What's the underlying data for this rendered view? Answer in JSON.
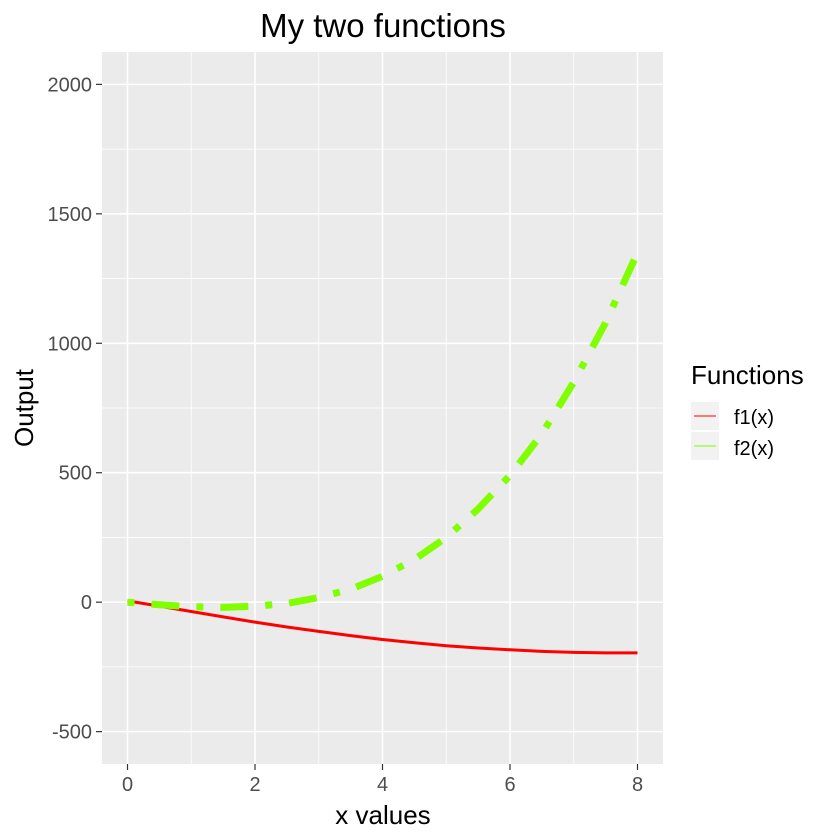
{
  "chart_data": {
    "type": "line",
    "title": "My two functions",
    "xlabel": "x values",
    "ylabel": "Output",
    "xlim": [
      -0.4,
      8.4
    ],
    "ylim": [
      -625,
      2125
    ],
    "x_ticks": [
      0,
      2,
      4,
      6,
      8
    ],
    "y_ticks": [
      -500,
      0,
      500,
      1000,
      1500,
      2000
    ],
    "grid": true,
    "panel_background": "#ebebeb",
    "legend": {
      "title": "Functions",
      "placement": "right"
    },
    "series": [
      {
        "name": "f1(x)",
        "color": "#ff0000",
        "line_style": "solid",
        "x": [
          0,
          0.5,
          1,
          1.5,
          2,
          2.5,
          3,
          3.5,
          4,
          4.5,
          5,
          5.5,
          6,
          6.5,
          7,
          7.5,
          8
        ],
        "y": [
          5,
          -15,
          -36,
          -57,
          -77,
          -96,
          -113,
          -129,
          -144,
          -157,
          -168,
          -177,
          -184,
          -190,
          -194,
          -196,
          -196
        ]
      },
      {
        "name": "f2(x)",
        "color": "#7fff00",
        "line_style": "dotdash",
        "x": [
          0,
          0.5,
          1,
          1.5,
          2,
          2.5,
          3,
          3.5,
          4,
          4.5,
          5,
          5.5,
          6,
          6.5,
          7,
          7.5,
          8
        ],
        "y": [
          0,
          -10,
          -18,
          -20,
          -16,
          -5,
          18,
          50,
          100,
          165,
          250,
          360,
          490,
          650,
          850,
          1080,
          1350
        ]
      }
    ]
  }
}
